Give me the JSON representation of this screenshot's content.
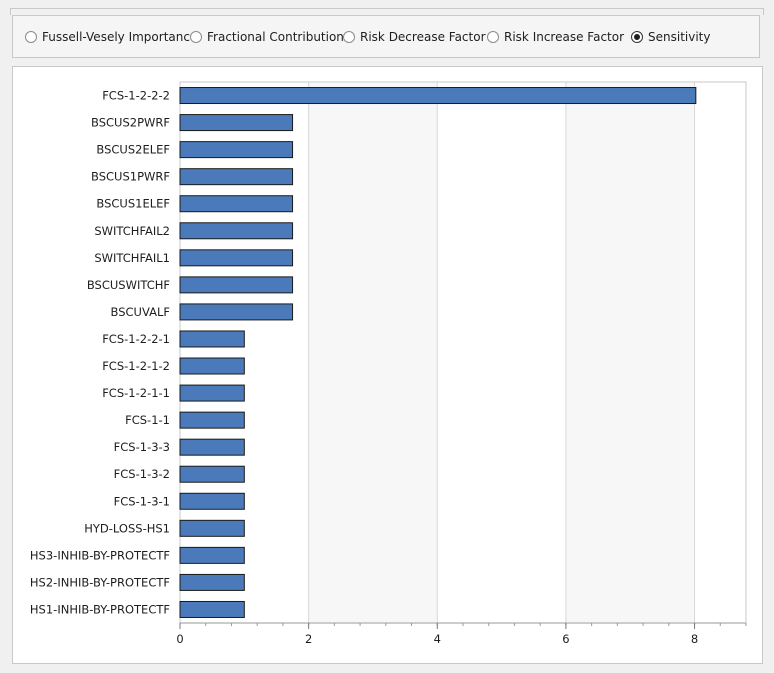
{
  "options": [
    {
      "label": "Fussell-Vesely Importance",
      "selected": false
    },
    {
      "label": "Fractional Contribution",
      "selected": false
    },
    {
      "label": "Risk Decrease Factor",
      "selected": false
    },
    {
      "label": "Risk Increase Factor",
      "selected": false
    },
    {
      "label": "Sensitivity",
      "selected": true
    }
  ],
  "colors": {
    "bar": "#4a7ab9",
    "bar_border": "#1a1a1a",
    "band": "#f7f7f7"
  },
  "chart_data": {
    "type": "bar",
    "orientation": "horizontal",
    "categories": [
      "FCS-1-2-2-2",
      "BSCUS2PWRF",
      "BSCUS2ELEF",
      "BSCUS1PWRF",
      "BSCUS1ELEF",
      "SWITCHFAIL2",
      "SWITCHFAIL1",
      "BSCUSWITCHF",
      "BSCUVALF",
      "FCS-1-2-2-1",
      "FCS-1-2-1-2",
      "FCS-1-2-1-1",
      "FCS-1-1",
      "FCS-1-3-3",
      "FCS-1-3-2",
      "FCS-1-3-1",
      "HYD-LOSS-HS1",
      "HS3-INHIB-BY-PROTECTF",
      "HS2-INHIB-BY-PROTECTF",
      "HS1-INHIB-BY-PROTECTF"
    ],
    "values": [
      8.02,
      1.75,
      1.75,
      1.75,
      1.75,
      1.75,
      1.75,
      1.75,
      1.75,
      1.0,
      1.0,
      1.0,
      1.0,
      1.0,
      1.0,
      1.0,
      1.0,
      1.0,
      1.0,
      1.0
    ],
    "xlim": [
      0,
      8.8
    ],
    "xticks": [
      0,
      2,
      4,
      6,
      8
    ],
    "grid": true,
    "title": "",
    "xlabel": "",
    "ylabel": ""
  }
}
